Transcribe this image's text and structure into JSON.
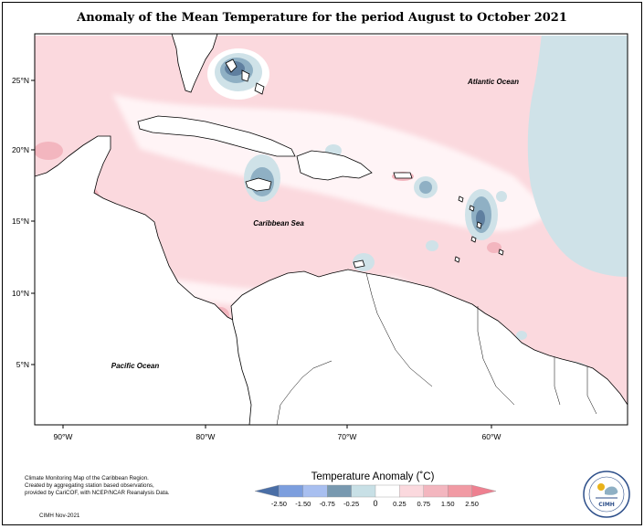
{
  "title": "Anomaly of the Mean Temperature for the period August to October 2021",
  "labels": {
    "atlantic": "Atlantic Ocean",
    "caribbean": "Caribbean Sea",
    "pacific": "Pacific Ocean"
  },
  "axes": {
    "lon_ticks": [
      "90°W",
      "80°W",
      "70°W",
      "60°W"
    ],
    "lat_ticks": [
      "25°N",
      "20°N",
      "15°N",
      "10°N",
      "5°N"
    ]
  },
  "legend": {
    "title": "Temperature Anomaly (˚C)",
    "ticks": [
      "-2.50",
      "-1.50",
      "-0.75",
      "-0.25",
      "0",
      "0.25",
      "0.75",
      "1.50",
      "2.50"
    ],
    "colors": [
      "#4a6ea6",
      "#7c9ede",
      "#a8bff0",
      "#7899b0",
      "#c8e0e6",
      "#ffffff",
      "#fbd9de",
      "#f3b6bf",
      "#f19aa4",
      "#ee8090"
    ]
  },
  "colors": {
    "warm_light": "#fbd9de",
    "warm_mid": "#f3b6bf",
    "neutral_cool": "#cfe2e8",
    "cool_mid": "#8fb0c4",
    "cool_dark": "#5f7f9f",
    "land": "#ffffff"
  },
  "credits": {
    "line1": "Climate Monitoring Map of the Caribbean Region.",
    "line2": "Created by aggregating station based observations,",
    "line3": "provided by CariCOF, with NCEP/NCAR Reanalysis Data.",
    "date": "CIMH Nov-2021"
  },
  "logo_text": "CIMH"
}
